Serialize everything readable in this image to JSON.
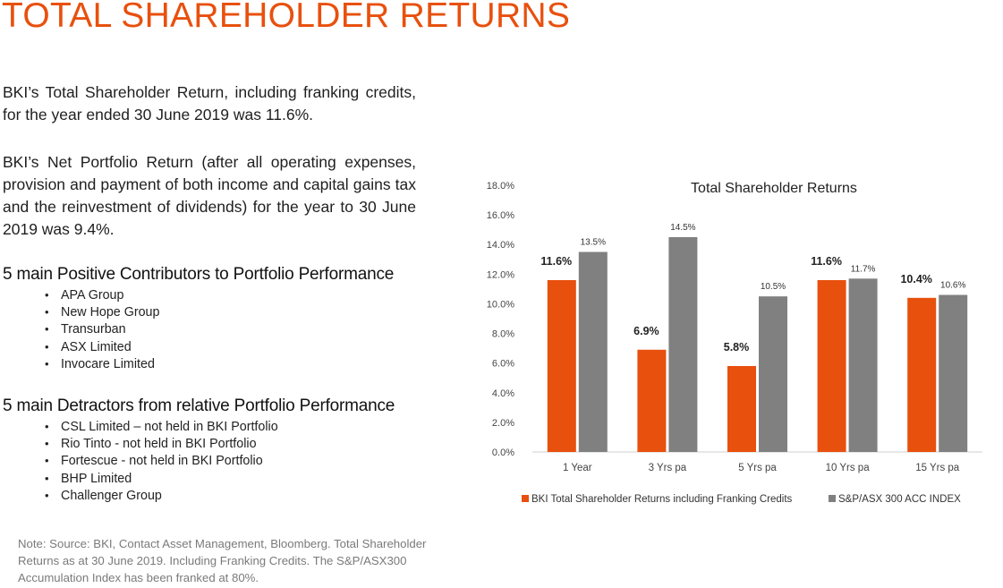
{
  "page": {
    "title": "TOTAL SHAREHOLDER RETURNS",
    "paragraph_1": "BKI’s Total Shareholder Return, including franking credits, for the year ended 30 June 2019 was 11.6%.",
    "paragraph_2": "BKI’s Net Portfolio Return (after all operating expenses, provision and payment of both income and capital gains tax and the reinvestment of dividends) for the year to 30 June 2019 was 9.4%.",
    "positive_heading": "5 main Positive Contributors to Portfolio Performance",
    "positive_items": [
      "APA Group",
      "New Hope Group",
      "Transurban",
      "ASX Limited",
      "Invocare Limited"
    ],
    "detractor_heading": "5 main Detractors from relative Portfolio Performance",
    "detractor_items": [
      "CSL Limited – not held in BKI Portfolio",
      "Rio Tinto - not held in BKI Portfolio",
      "Fortescue  - not held in BKI Portfolio",
      "BHP Limited",
      "Challenger Group"
    ],
    "bullet_glyph": "•",
    "note": "Note: Source: BKI, Contact Asset Management, Bloomberg. Total Shareholder Returns as at 30 June 2019. Including Franking Credits. The S&P/ASX300 Accumulation Index has been franked at 80%."
  },
  "colors": {
    "accent": "#E8500E",
    "series_1": "#E8500E",
    "series_2": "#808080"
  },
  "chart_data": {
    "type": "bar",
    "title": "Total Shareholder Returns",
    "xlabel": "",
    "ylabel": "",
    "categories": [
      "1 Year",
      "3 Yrs pa",
      "5 Yrs pa",
      "10 Yrs pa",
      "15 Yrs pa"
    ],
    "series": [
      {
        "name": "BKI Total Shareholder Returns including Franking Credits",
        "color": "#E8500E",
        "values": [
          11.6,
          6.9,
          5.8,
          11.6,
          10.4
        ],
        "labels": [
          "11.6%",
          "6.9%",
          "5.8%",
          "11.6%",
          "10.4%"
        ]
      },
      {
        "name": "S&P/ASX 300 ACC INDEX",
        "color": "#808080",
        "values": [
          13.5,
          14.5,
          10.5,
          11.7,
          10.6
        ],
        "labels": [
          "13.5%",
          "14.5%",
          "10.5%",
          "11.7%",
          "10.6%"
        ]
      }
    ],
    "ylim": [
      0,
      18
    ],
    "yticks": [
      0,
      2,
      4,
      6,
      8,
      10,
      12,
      14,
      16,
      18
    ],
    "ytick_labels": [
      "0.0%",
      "2.0%",
      "4.0%",
      "6.0%",
      "8.0%",
      "10.0%",
      "12.0%",
      "14.0%",
      "16.0%",
      "18.0%"
    ],
    "grid": false,
    "legend": "bottom"
  }
}
